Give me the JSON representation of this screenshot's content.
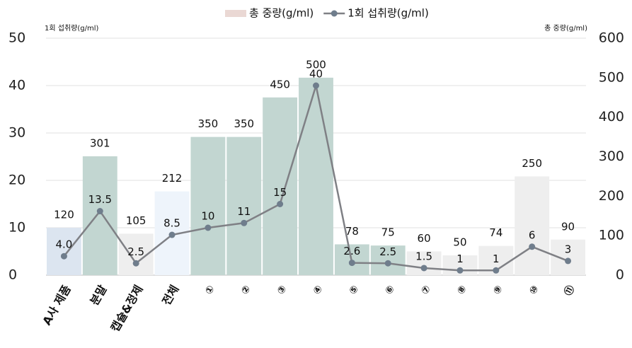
{
  "chart_data": {
    "type": "bar-line",
    "y_label": "1회 섭취량(g/ml)",
    "y2_label": "총 중량(g/ml)",
    "categories": [
      "A사 제품",
      "분말",
      "캡슐&정제",
      "전체",
      "①",
      "②",
      "③",
      "④",
      "⑤",
      "⑥",
      "⑦",
      "⑧",
      "⑨",
      "⑩",
      "⑪"
    ],
    "series": [
      {
        "name": "총 중량(g/ml)",
        "type": "bar",
        "axis": "y2",
        "color": "#ead8d4",
        "colors": [
          "#dce5f0",
          "#c2d6d1",
          "#eeeeee",
          "#eef4fb",
          "#c2d6d1",
          "#c2d6d1",
          "#c2d6d1",
          "#c2d6d1",
          "#c2d6d1",
          "#c2d6d1",
          "#eeeeee",
          "#eeeeee",
          "#eeeeee",
          "#eeeeee",
          "#eeeeee"
        ],
        "values": [
          120,
          301,
          105,
          212,
          350,
          350,
          450,
          500,
          78,
          75,
          60,
          50,
          74,
          250,
          90
        ]
      },
      {
        "name": "1회 섭취량(g/ml)",
        "type": "line",
        "axis": "y",
        "color": "#7f8085",
        "marker_color": "#6f7d8c",
        "values": [
          4,
          13.5,
          2.5,
          8.5,
          10,
          11,
          15,
          40,
          2.6,
          2.5,
          1.5,
          1,
          1,
          6,
          3
        ],
        "value_labels": [
          "4.0",
          "13.5",
          "2.5",
          "8.5",
          "10",
          "11",
          "15",
          "40",
          "2.6",
          "2.5",
          "1.5",
          "1",
          "1",
          "6",
          "3"
        ]
      }
    ],
    "ylim": [
      0,
      50
    ],
    "yticks": [
      0,
      10,
      20,
      30,
      40,
      50
    ],
    "y2lim": [
      0,
      600
    ],
    "y2ticks": [
      0,
      100,
      200,
      300,
      400,
      500,
      600
    ],
    "grid": true,
    "legend": "top"
  }
}
